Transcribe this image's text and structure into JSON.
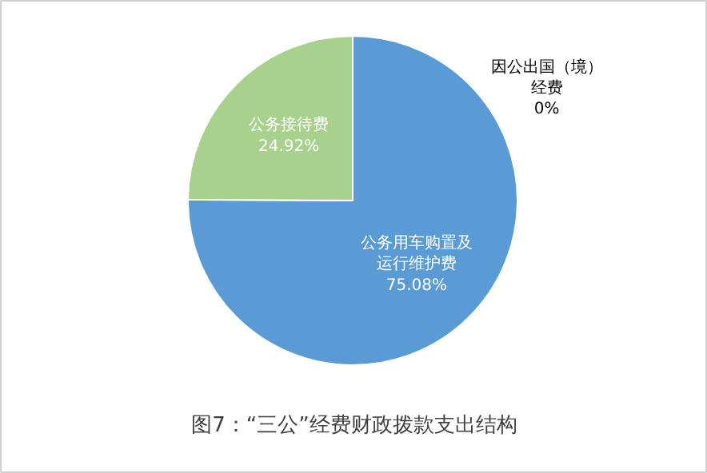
{
  "chart_data": {
    "type": "pie",
    "title": "图7：“三公”经费财政拨款支出结构",
    "categories": [
      "因公出国（境）经费",
      "公务用车购置及运行维护费",
      "公务接待费"
    ],
    "values": [
      0,
      75.08,
      24.92
    ],
    "colors": [
      "#ed7d31",
      "#5b9bd5",
      "#a9d18e"
    ],
    "value_labels": [
      "0%",
      "75.08%",
      "24.92%"
    ]
  }
}
